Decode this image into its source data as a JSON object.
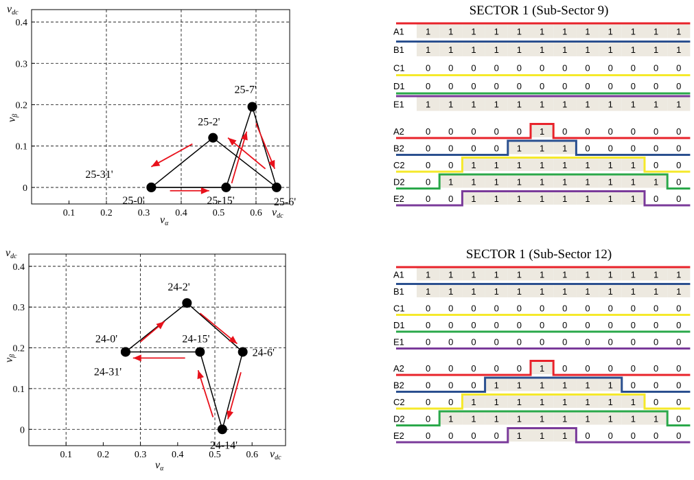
{
  "plots": [
    {
      "axis_units": {
        "x_end_label": "v",
        "x_end_sub": "dc",
        "y_end_label": "v",
        "y_end_sub": "dc",
        "xlabel": "v",
        "xlabel_sub": "α",
        "ylabel": "v",
        "ylabel_sub": "β"
      },
      "x_ticks": [
        "0.1",
        "0.2",
        "0.3",
        "0.4",
        "0.5",
        "0.6"
      ],
      "y_ticks": [
        "0",
        "0.1",
        "0.2",
        "0.3",
        "0.4"
      ],
      "points": [
        {
          "label": "25-0'",
          "x": 0.32,
          "y": 0.0
        },
        {
          "label": "25-15'",
          "x": 0.52,
          "y": 0.0
        },
        {
          "label": "25-6'",
          "x": 0.655,
          "y": 0.0
        },
        {
          "label": "25-2'",
          "x": 0.485,
          "y": 0.12
        },
        {
          "label": "25-7'",
          "x": 0.59,
          "y": 0.195
        },
        {
          "label": "25-31'",
          "x": 0.32,
          "y": 0.0
        }
      ]
    },
    {
      "axis_units": {
        "x_end_label": "v",
        "x_end_sub": "dc",
        "y_end_label": "v",
        "y_end_sub": "dc",
        "xlabel": "v",
        "xlabel_sub": "α",
        "ylabel": "v",
        "ylabel_sub": "β"
      },
      "x_ticks": [
        "0.1",
        "0.2",
        "0.3",
        "0.4",
        "0.5",
        "0.6"
      ],
      "y_ticks": [
        "0",
        "0.1",
        "0.2",
        "0.3",
        "0.4"
      ],
      "points": [
        {
          "label": "24-0'",
          "x": 0.26,
          "y": 0.19
        },
        {
          "label": "24-31'",
          "x": 0.26,
          "y": 0.19
        },
        {
          "label": "24-15'",
          "x": 0.46,
          "y": 0.19
        },
        {
          "label": "24-6'",
          "x": 0.575,
          "y": 0.19
        },
        {
          "label": "24-2'",
          "x": 0.425,
          "y": 0.31
        },
        {
          "label": "24-14'",
          "x": 0.52,
          "y": 0.0
        }
      ]
    }
  ],
  "tables": [
    {
      "title": "SECTOR 1 (Sub-Sector 9)",
      "rows": [
        {
          "name": "A1",
          "bits": [
            "1",
            "1",
            "1",
            "1",
            "1",
            "1",
            "1",
            "1",
            "1",
            "1",
            "1",
            "1"
          ]
        },
        {
          "name": "B1",
          "bits": [
            "1",
            "1",
            "1",
            "1",
            "1",
            "1",
            "1",
            "1",
            "1",
            "1",
            "1",
            "1"
          ]
        },
        {
          "name": "C1",
          "bits": [
            "0",
            "0",
            "0",
            "0",
            "0",
            "0",
            "0",
            "0",
            "0",
            "0",
            "0",
            "0"
          ]
        },
        {
          "name": "D1",
          "bits": [
            "0",
            "0",
            "0",
            "0",
            "0",
            "0",
            "0",
            "0",
            "0",
            "0",
            "0",
            "0"
          ]
        },
        {
          "name": "E1",
          "bits": [
            "1",
            "1",
            "1",
            "1",
            "1",
            "1",
            "1",
            "1",
            "1",
            "1",
            "1",
            "1"
          ]
        },
        {
          "name": "A2",
          "bits": [
            "0",
            "0",
            "0",
            "0",
            "0",
            "1",
            "0",
            "0",
            "0",
            "0",
            "0",
            "0"
          ]
        },
        {
          "name": "B2",
          "bits": [
            "0",
            "0",
            "0",
            "0",
            "1",
            "1",
            "1",
            "0",
            "0",
            "0",
            "0",
            "0"
          ]
        },
        {
          "name": "C2",
          "bits": [
            "0",
            "0",
            "1",
            "1",
            "1",
            "1",
            "1",
            "1",
            "1",
            "1",
            "0",
            "0"
          ]
        },
        {
          "name": "D2",
          "bits": [
            "0",
            "1",
            "1",
            "1",
            "1",
            "1",
            "1",
            "1",
            "1",
            "1",
            "1",
            "0"
          ]
        },
        {
          "name": "E2",
          "bits": [
            "0",
            "0",
            "1",
            "1",
            "1",
            "1",
            "1",
            "1",
            "1",
            "1",
            "0",
            "0"
          ]
        }
      ]
    },
    {
      "title": "SECTOR 1 (Sub-Sector 12)",
      "rows": [
        {
          "name": "A1",
          "bits": [
            "1",
            "1",
            "1",
            "1",
            "1",
            "1",
            "1",
            "1",
            "1",
            "1",
            "1",
            "1"
          ]
        },
        {
          "name": "B1",
          "bits": [
            "1",
            "1",
            "1",
            "1",
            "1",
            "1",
            "1",
            "1",
            "1",
            "1",
            "1",
            "1"
          ]
        },
        {
          "name": "C1",
          "bits": [
            "0",
            "0",
            "0",
            "0",
            "0",
            "0",
            "0",
            "0",
            "0",
            "0",
            "0",
            "0"
          ]
        },
        {
          "name": "D1",
          "bits": [
            "0",
            "0",
            "0",
            "0",
            "0",
            "0",
            "0",
            "0",
            "0",
            "0",
            "0",
            "0"
          ]
        },
        {
          "name": "E1",
          "bits": [
            "0",
            "0",
            "0",
            "0",
            "0",
            "0",
            "0",
            "0",
            "0",
            "0",
            "0",
            "0"
          ]
        },
        {
          "name": "A2",
          "bits": [
            "0",
            "0",
            "0",
            "0",
            "0",
            "1",
            "0",
            "0",
            "0",
            "0",
            "0",
            "0"
          ]
        },
        {
          "name": "B2",
          "bits": [
            "0",
            "0",
            "0",
            "1",
            "1",
            "1",
            "1",
            "1",
            "1",
            "0",
            "0",
            "0"
          ]
        },
        {
          "name": "C2",
          "bits": [
            "0",
            "0",
            "1",
            "1",
            "1",
            "1",
            "1",
            "1",
            "1",
            "1",
            "0",
            "0"
          ]
        },
        {
          "name": "D2",
          "bits": [
            "0",
            "1",
            "1",
            "1",
            "1",
            "1",
            "1",
            "1",
            "1",
            "1",
            "1",
            "0"
          ]
        },
        {
          "name": "E2",
          "bits": [
            "0",
            "0",
            "0",
            "0",
            "1",
            "1",
            "1",
            "0",
            "0",
            "0",
            "0",
            "0"
          ]
        }
      ]
    }
  ],
  "colors": {
    "A": "#e8222a",
    "B": "#2a4f8f",
    "C": "#f5e92a",
    "D": "#2aa84a",
    "E": "#7a3a9a",
    "fill_one": "#ede9e0",
    "arrow": "#e8111b"
  }
}
